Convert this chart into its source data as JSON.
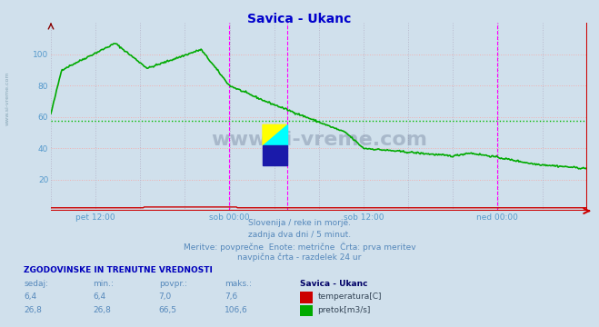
{
  "title": "Savica - Ukanc",
  "title_color": "#0000cc",
  "bg_color": "#d0e0ec",
  "plot_bg_color": "#d0e0ec",
  "xlabel_ticks": [
    "pet 12:00",
    "sob 00:00",
    "sob 12:00",
    "ned 00:00"
  ],
  "xlabel_tick_positions": [
    0.083,
    0.333,
    0.583,
    0.833
  ],
  "ylim": [
    0,
    120
  ],
  "yticks": [
    20,
    40,
    60,
    80,
    100
  ],
  "avg_line_value": 57.5,
  "avg_line_color": "#00bb00",
  "vline_color": "#ff00ff",
  "vline_positions": [
    0.333,
    0.44,
    0.833
  ],
  "temp_color": "#cc0000",
  "flow_color": "#00aa00",
  "text_color": "#5588bb",
  "bottom_text1": "Slovenija / reke in morje.",
  "bottom_text2": "zadnja dva dni / 5 minut.",
  "bottom_text3": "Meritve: povprečne  Enote: metrične  Črta: prva meritev",
  "bottom_text4": "navpična črta - razdelek 24 ur",
  "table_header": "ZGODOVINSKE IN TRENUTNE VREDNOSTI",
  "col_headers": [
    "sedaj:",
    "min.:",
    "povpr.:",
    "maks.:",
    "Savica - Ukanc"
  ],
  "temp_values": [
    "6,4",
    "6,4",
    "7,0",
    "7,6"
  ],
  "flow_values": [
    "26,8",
    "26,8",
    "66,5",
    "106,6"
  ],
  "label_temp": "temperatura[C]",
  "label_flow": "pretok[m3/s]",
  "sidebar_text": "www.si-vreme.com"
}
